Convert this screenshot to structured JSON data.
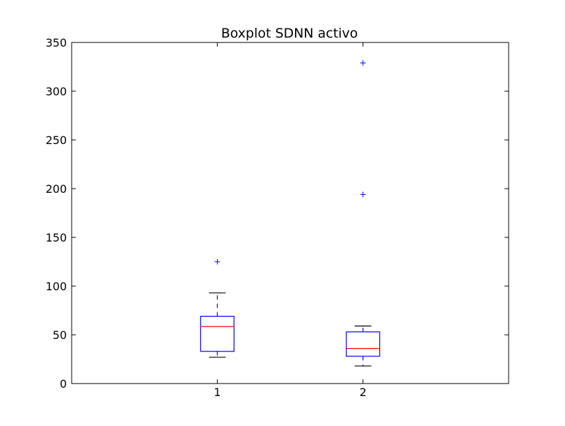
{
  "chart_data": {
    "type": "boxplot",
    "title": "Boxplot SDNN activo",
    "xlabel": "",
    "ylabel": "",
    "categories": [
      "1",
      "2"
    ],
    "ylim": [
      0,
      350
    ],
    "yticks": [
      0,
      50,
      100,
      150,
      200,
      250,
      300,
      350
    ],
    "grid": false,
    "boxes": [
      {
        "category": "1",
        "whisker_low": 27,
        "q1": 33,
        "median": 58.5,
        "q3": 69,
        "whisker_high": 93,
        "outliers": [
          125
        ]
      },
      {
        "category": "2",
        "whisker_low": 18,
        "q1": 28,
        "median": 36,
        "q3": 53,
        "whisker_high": 59,
        "outliers": [
          194,
          329
        ]
      }
    ],
    "colors": {
      "box": "#0000ff",
      "median": "#ff0000",
      "whisker_cap": "#000000",
      "outlier": "#0000ff",
      "axes": "#000000"
    }
  }
}
